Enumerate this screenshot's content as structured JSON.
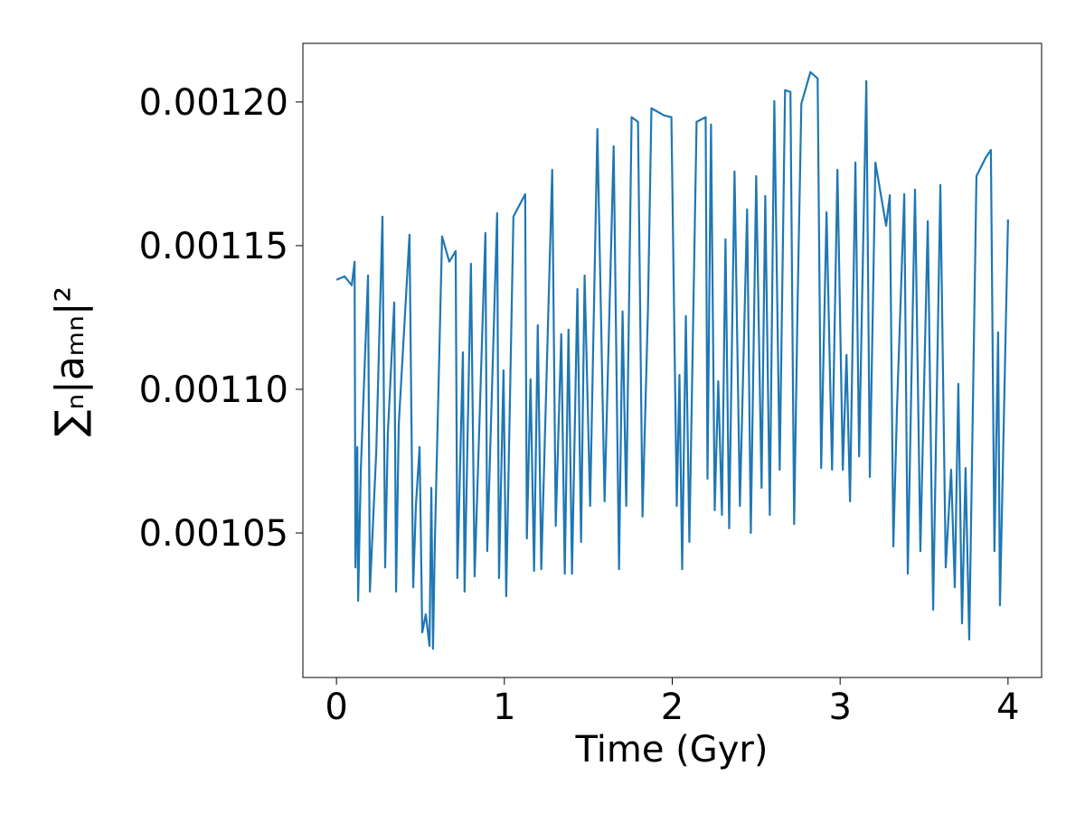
{
  "chart_data": {
    "type": "line",
    "x_label": "Time (Gyr)",
    "y_label": "∑ₙ|aₘₙ|²",
    "xlim": [
      -0.2,
      4.2
    ],
    "ylim": [
      0.0009997,
      0.0012204
    ],
    "xticks": [
      0,
      1,
      2,
      3,
      4
    ],
    "yticks": [
      0.00105,
      {
        "value": 0.0011,
        "label": "0.00110"
      },
      0.00115,
      {
        "value": 0.0012,
        "label": "0.00120"
      }
    ],
    "grid": false,
    "x": [
      0,
      0.048,
      0.091,
      0.108,
      0.113,
      0.124,
      0.129,
      0.145,
      0.188,
      0.199,
      0.237,
      0.274,
      0.29,
      0.306,
      0.344,
      0.355,
      0.371,
      0.435,
      0.457,
      0.473,
      0.495,
      0.511,
      0.532,
      0.554,
      0.565,
      0.575,
      0.586,
      0.629,
      0.672,
      0.71,
      0.72,
      0.753,
      0.763,
      0.801,
      0.823,
      0.887,
      0.898,
      0.957,
      0.968,
      0.995,
      1.011,
      1.054,
      1.124,
      1.134,
      1.156,
      1.177,
      1.199,
      1.22,
      1.285,
      1.306,
      1.339,
      1.36,
      1.382,
      1.403,
      1.435,
      1.457,
      1.478,
      1.511,
      1.554,
      1.597,
      1.651,
      1.683,
      1.704,
      1.726,
      1.758,
      1.796,
      1.823,
      1.855,
      1.876,
      1.952,
      1.995,
      2.027,
      2.043,
      2.059,
      2.081,
      2.102,
      2.145,
      2.199,
      2.21,
      2.231,
      2.253,
      2.274,
      2.296,
      2.317,
      2.339,
      2.371,
      2.403,
      2.446,
      2.468,
      2.5,
      2.532,
      2.554,
      2.581,
      2.608,
      2.64,
      2.672,
      2.704,
      2.726,
      2.747,
      2.769,
      2.823,
      2.866,
      2.887,
      2.919,
      2.952,
      2.984,
      3.016,
      3.038,
      3.059,
      3.091,
      3.113,
      3.156,
      3.177,
      3.21,
      3.242,
      3.274,
      3.296,
      3.317,
      3.339,
      3.382,
      3.403,
      3.446,
      3.478,
      3.522,
      3.554,
      3.597,
      3.629,
      3.661,
      3.683,
      3.704,
      3.726,
      3.747,
      3.769,
      3.812,
      3.866,
      3.898,
      3.919,
      3.941,
      3.952,
      4.0
    ],
    "series": [
      {
        "name": "sum",
        "color": "#1f77b4",
        "values": [
          0.0011381,
          0.0011393,
          0.0011362,
          0.0011444,
          0.001038,
          0.0010799,
          0.0010264,
          0.001072,
          0.0011396,
          0.0010296,
          0.0010783,
          0.0011601,
          0.001038,
          0.0010846,
          0.0011302,
          0.0010296,
          0.0010877,
          0.0011538,
          0.0010311,
          0.0010594,
          0.0010799,
          0.0010154,
          0.0010217,
          0.0010107,
          0.0010657,
          0.0010097,
          0.0010469,
          0.0011532,
          0.0011444,
          0.0011481,
          0.0010343,
          0.0011129,
          0.0010296,
          0.0011437,
          0.0010349,
          0.0011544,
          0.0010437,
          0.0011613,
          0.0010343,
          0.0011066,
          0.001028,
          0.0011601,
          0.0011679,
          0.0010481,
          0.0011035,
          0.0010368,
          0.0011223,
          0.0010374,
          0.0011764,
          0.0010525,
          0.0011192,
          0.0010358,
          0.0011208,
          0.0010358,
          0.0011349,
          0.0010469,
          0.0011396,
          0.0010594,
          0.0011906,
          0.001061,
          0.0011846,
          0.0010374,
          0.0011271,
          0.0010594,
          0.0011947,
          0.0011931,
          0.0010557,
          0.0011271,
          0.0011978,
          0.0011953,
          0.0011947,
          0.0010594,
          0.001105,
          0.0010374,
          0.0011255,
          0.0010469,
          0.0011931,
          0.0011947,
          0.0010689,
          0.0011922,
          0.0010579,
          0.0011028,
          0.0010563,
          0.0011522,
          0.0010516,
          0.0011758,
          0.0010594,
          0.0011626,
          0.00105,
          0.0011742,
          0.0010657,
          0.0011673,
          0.0010563,
          0.0012003,
          0.001072,
          0.0012041,
          0.0012035,
          0.0010531,
          0.0011311,
          0.0011994,
          0.0012104,
          0.0012082,
          0.0010726,
          0.0011616,
          0.001072,
          0.0011764,
          0.001072,
          0.001112,
          0.001061,
          0.0011789,
          0.0010767,
          0.0012073,
          0.0010695,
          0.0011789,
          0.0011679,
          0.0011569,
          0.0011676,
          0.0010453,
          0.001094,
          0.0011679,
          0.0010358,
          0.0011695,
          0.0010437,
          0.0011585,
          0.0010233,
          0.0011711,
          0.001038,
          0.001072,
          0.0010311,
          0.0011019,
          0.0010185,
          0.0010726,
          0.0010129,
          0.0011742,
          0.0011805,
          0.0011833,
          0.0010437,
          0.0011198,
          0.0010248,
          0.0011591
        ]
      }
    ]
  }
}
